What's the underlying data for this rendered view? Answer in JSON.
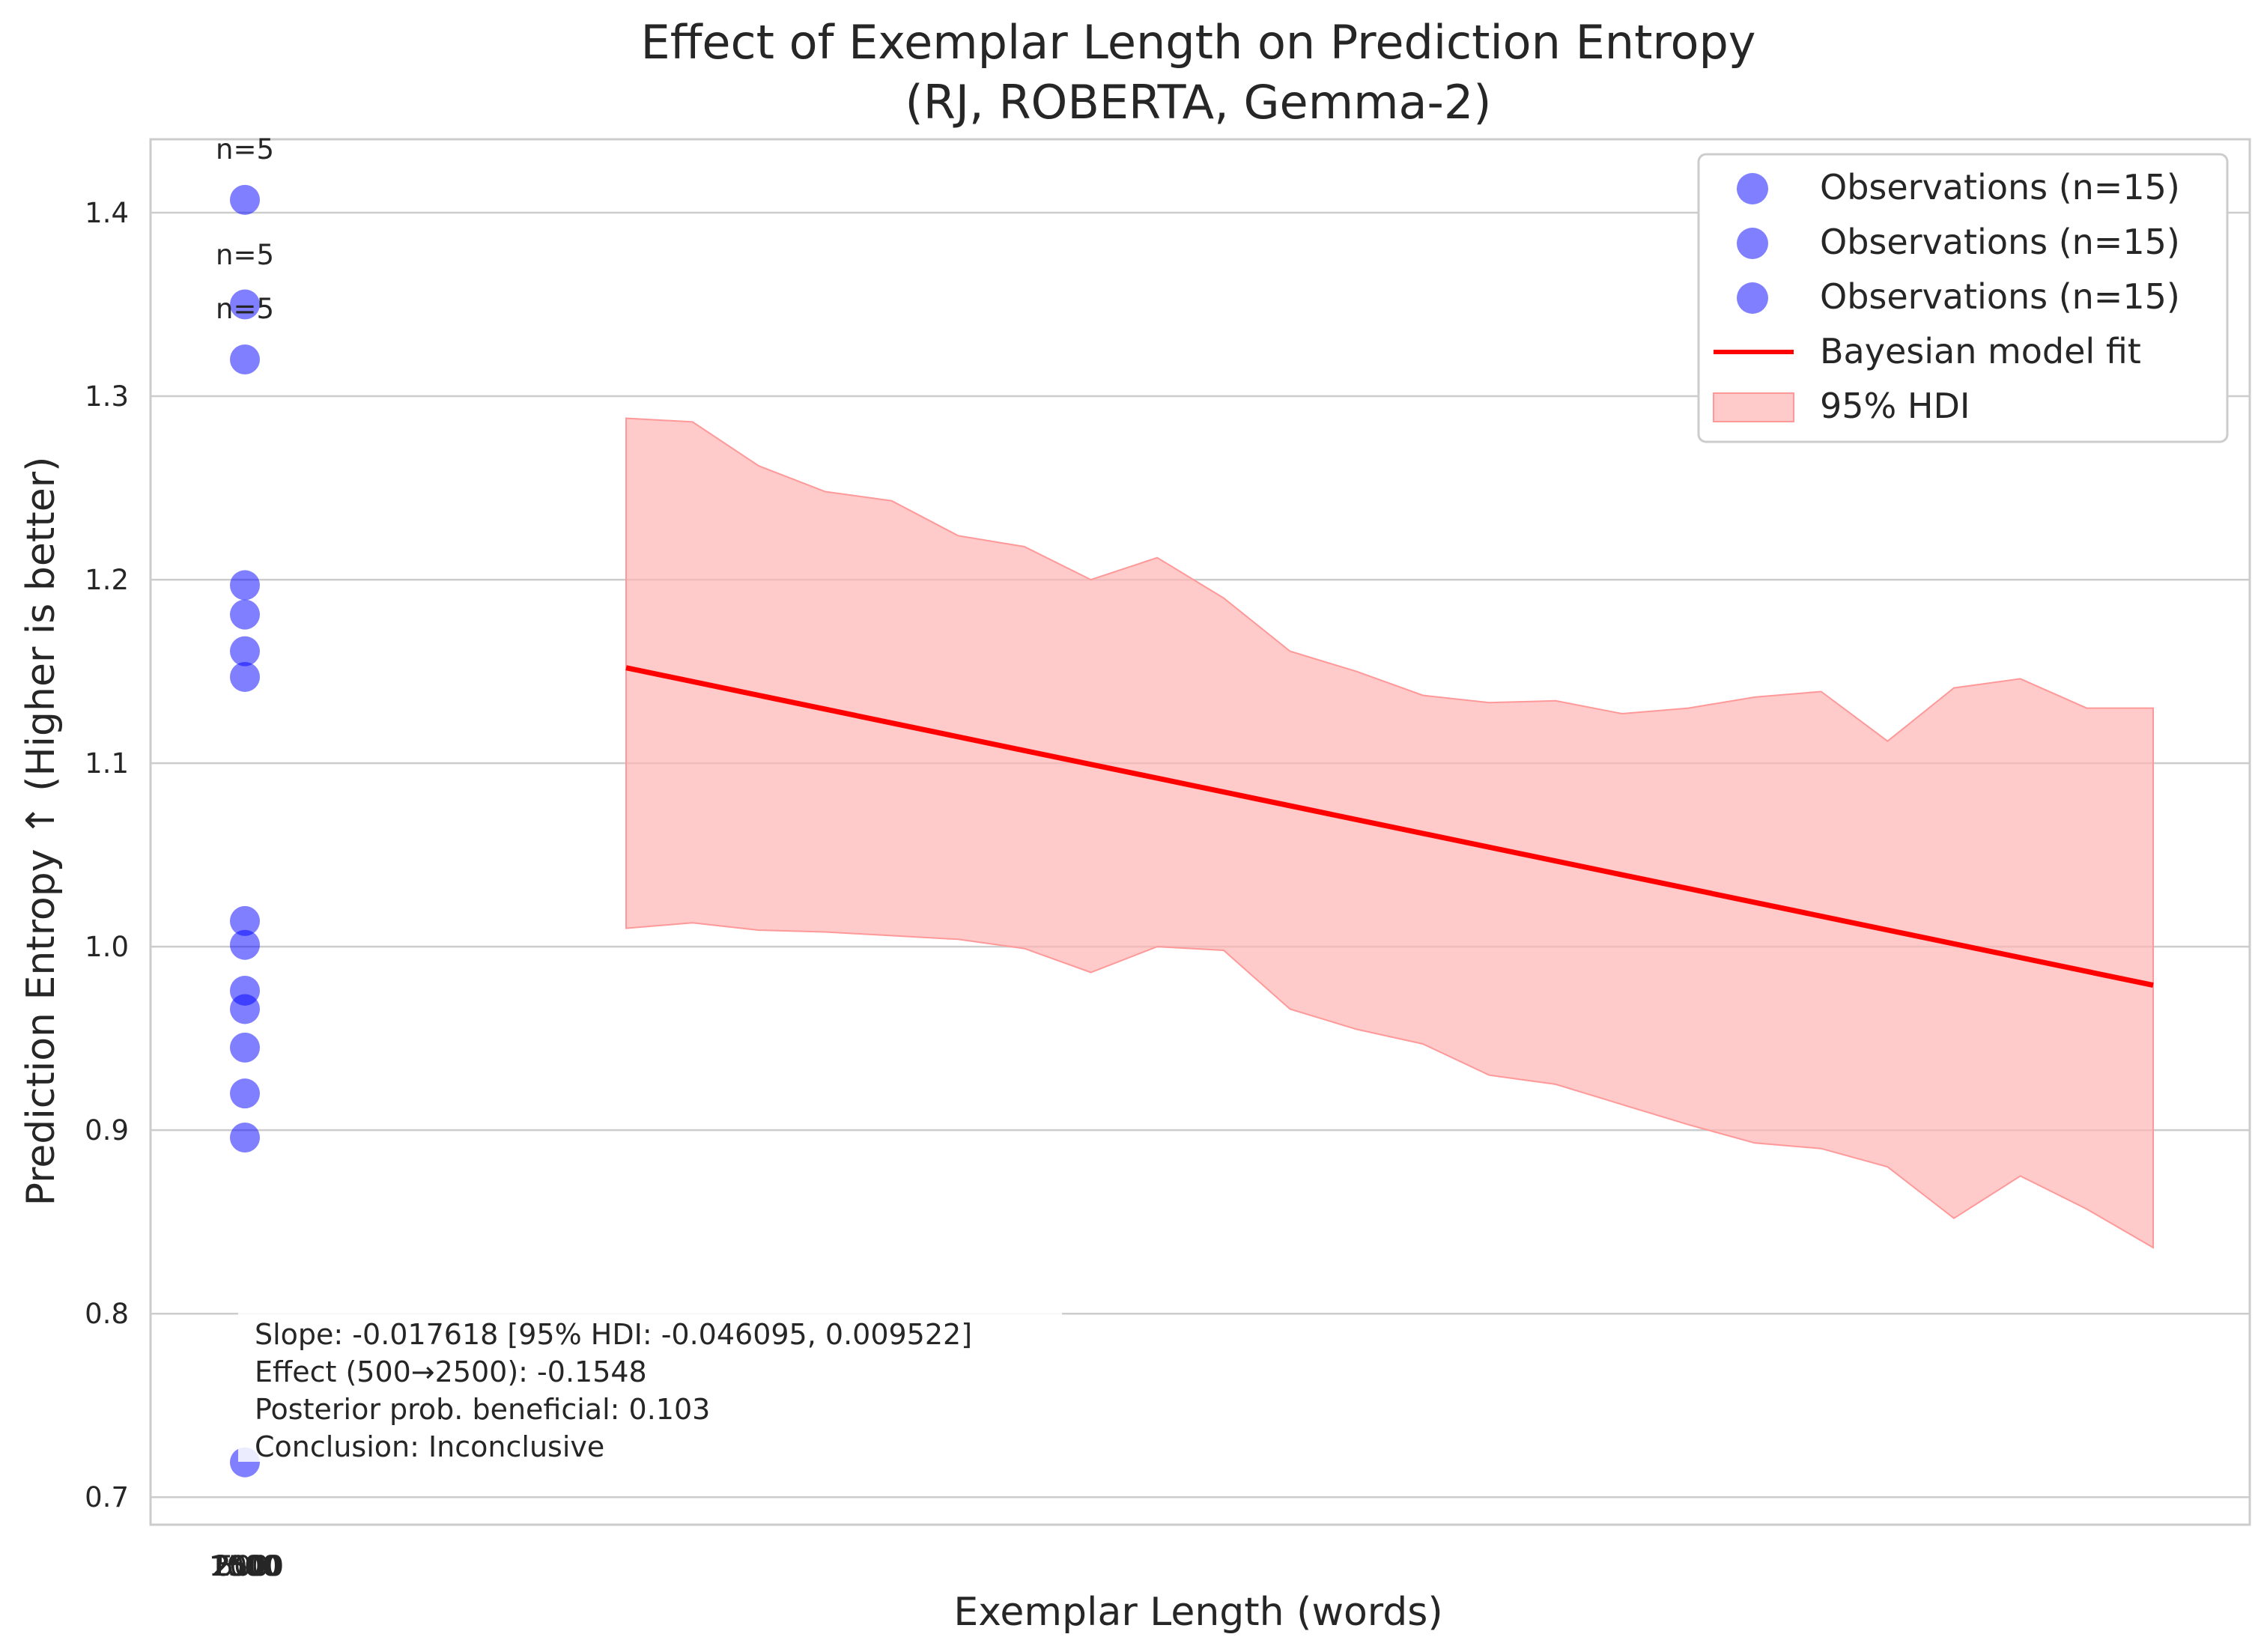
{
  "chart_data": {
    "type": "scatter",
    "title": "Effect of Exemplar Length on Prediction Entropy",
    "subtitle": "(RJ, ROBERTA, Gemma-2)",
    "xlabel": "Exemplar Length (words)",
    "ylabel": "Prediction Entropy ↑ (Higher is better)",
    "ylim": [
      0.685,
      1.44
    ],
    "y_ticks": [
      0.7,
      0.8,
      0.9,
      1.0,
      1.1,
      1.2,
      1.3,
      1.4
    ],
    "y_tick_labels": [
      "0.7",
      "0.8",
      "0.9",
      "1.0",
      "1.1",
      "1.2",
      "1.3",
      "1.4"
    ],
    "x_tick_labels": [
      "500",
      "1000",
      "1500",
      "2000",
      "2500"
    ],
    "grid": "horizontal",
    "legend_position": "top-right",
    "colors": {
      "observations": "#0000ff",
      "fit": "#ff0000",
      "hdi": "#ffb3b3"
    },
    "series": [
      {
        "name": "Observations (n=15)",
        "kind": "scatter",
        "y": [
          1.407,
          1.35,
          1.32,
          1.197,
          1.181
        ]
      },
      {
        "name": "Observations (n=15)",
        "kind": "scatter",
        "y": [
          1.161,
          1.147,
          1.014,
          1.001,
          0.976
        ]
      },
      {
        "name": "Observations (n=15)",
        "kind": "scatter",
        "y": [
          0.966,
          0.945,
          0.92,
          0.896,
          0.719
        ]
      },
      {
        "name": "Bayesian model fit",
        "kind": "line",
        "start": 1.152,
        "end": 0.979
      },
      {
        "name": "95% HDI",
        "kind": "band",
        "upper": [
          1.288,
          1.286,
          1.262,
          1.248,
          1.243,
          1.224,
          1.218,
          1.2,
          1.212,
          1.19,
          1.161,
          1.15,
          1.137,
          1.133,
          1.134,
          1.127,
          1.13,
          1.136,
          1.139,
          1.112,
          1.141,
          1.146,
          1.13,
          1.13
        ],
        "lower": [
          1.01,
          1.013,
          1.009,
          1.008,
          1.006,
          1.004,
          0.999,
          0.986,
          1.0,
          0.998,
          0.966,
          0.955,
          0.947,
          0.93,
          0.925,
          0.914,
          0.903,
          0.893,
          0.89,
          0.88,
          0.852,
          0.875,
          0.857,
          0.836
        ]
      }
    ],
    "annotations": {
      "counts": [
        "n=5",
        "n=5",
        "n=5"
      ],
      "stats": [
        "Slope: -0.017618 [95% HDI: -0.046095, 0.009522]",
        "Effect (500→2500): -0.1548",
        "Posterior prob. beneficial: 0.103",
        "Conclusion: Inconclusive"
      ]
    }
  }
}
